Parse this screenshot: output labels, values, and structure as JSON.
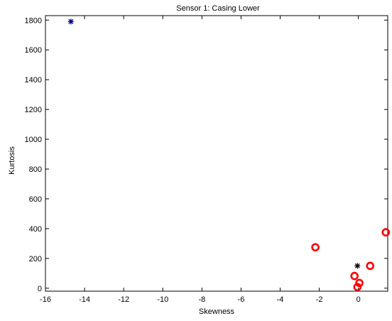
{
  "chart_data": {
    "type": "scatter",
    "title": "Sensor 1: Casing Lower",
    "xlabel": "Skewness",
    "ylabel": "Kurtosis",
    "xlim": [
      -16,
      1.5
    ],
    "ylim": [
      -20,
      1830
    ],
    "xticks": [
      -16,
      -14,
      -12,
      -10,
      -8,
      -6,
      -4,
      -2,
      0
    ],
    "yticks": [
      0,
      200,
      400,
      600,
      800,
      1000,
      1200,
      1400,
      1600,
      1800
    ],
    "grid": false,
    "series": [
      {
        "marker": "circle",
        "color": "#ff0000",
        "points": [
          {
            "x": -2.2,
            "y": 275
          },
          {
            "x": -0.2,
            "y": 82
          },
          {
            "x": 0.05,
            "y": 35
          },
          {
            "x": -0.05,
            "y": 8
          },
          {
            "x": 0.6,
            "y": 150
          },
          {
            "x": 1.4,
            "y": 375
          }
        ]
      },
      {
        "marker": "asterisk",
        "color": "#000000",
        "points": [
          {
            "x": -0.05,
            "y": 150
          }
        ]
      },
      {
        "marker": "asterisk",
        "color": "#000080",
        "points": [
          {
            "x": -14.7,
            "y": 1790
          }
        ]
      }
    ]
  }
}
